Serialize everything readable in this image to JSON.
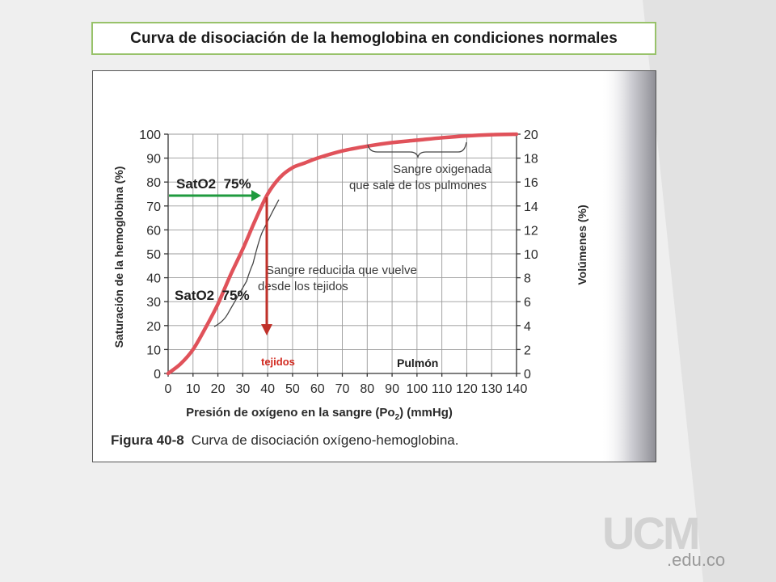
{
  "slide": {
    "title": "Curva de disociación de la hemoglobina en condiciones normales",
    "logo": {
      "letters": "UCM",
      "domain": ".edu.co"
    }
  },
  "chart_data": {
    "type": "line",
    "title": "",
    "xlabel": "Presión de oxígeno en la sangre (Po2) (mmHg)",
    "ylabel": "Saturación de la hemoglobina (%)",
    "y2label": "Volúmenes (%)",
    "xlim": [
      0,
      140
    ],
    "ylim": [
      0,
      100
    ],
    "y2lim": [
      0,
      20
    ],
    "x_ticks": [
      "0",
      "10",
      "20",
      "30",
      "40",
      "50",
      "60",
      "70",
      "80",
      "90",
      "100",
      "110",
      "120",
      "130",
      "140"
    ],
    "y_ticks": [
      "0",
      "10",
      "20",
      "30",
      "40",
      "50",
      "60",
      "70",
      "80",
      "90",
      "100"
    ],
    "y2_ticks": [
      "0",
      "2",
      "4",
      "6",
      "8",
      "10",
      "12",
      "14",
      "16",
      "18",
      "20"
    ],
    "grid": true,
    "series": [
      {
        "color": "#e0525a",
        "x": [
          0,
          5,
          10,
          15,
          20,
          25,
          30,
          35,
          40,
          45,
          50,
          55,
          60,
          70,
          80,
          90,
          100,
          110,
          120,
          130,
          140
        ],
        "y": [
          0,
          4,
          10,
          19,
          29,
          41,
          52,
          64,
          75,
          82,
          86,
          88,
          90,
          93,
          95,
          96.5,
          97.5,
          98.5,
          99.3,
          99.8,
          100
        ]
      }
    ],
    "annotations": {
      "oxygenated": [
        "Sangre oxigenada",
        "que sale de los pulmones"
      ],
      "reduced": [
        "Sangre reducida que vuelve",
        "desde los tejidos"
      ],
      "sat_upper": "SatO2  75%",
      "sat_lower": "SatO2  75%",
      "tejidos": "tejidos",
      "pulmon": "Pulmón"
    },
    "caption": {
      "label": "Figura 40-8",
      "text": "Curva de disociación oxígeno-hemoglobina."
    },
    "colors": {
      "green_arrow": "#1f9a3e",
      "red_arrow": "#c0312a",
      "tejidos_text": "#d22a20"
    }
  }
}
